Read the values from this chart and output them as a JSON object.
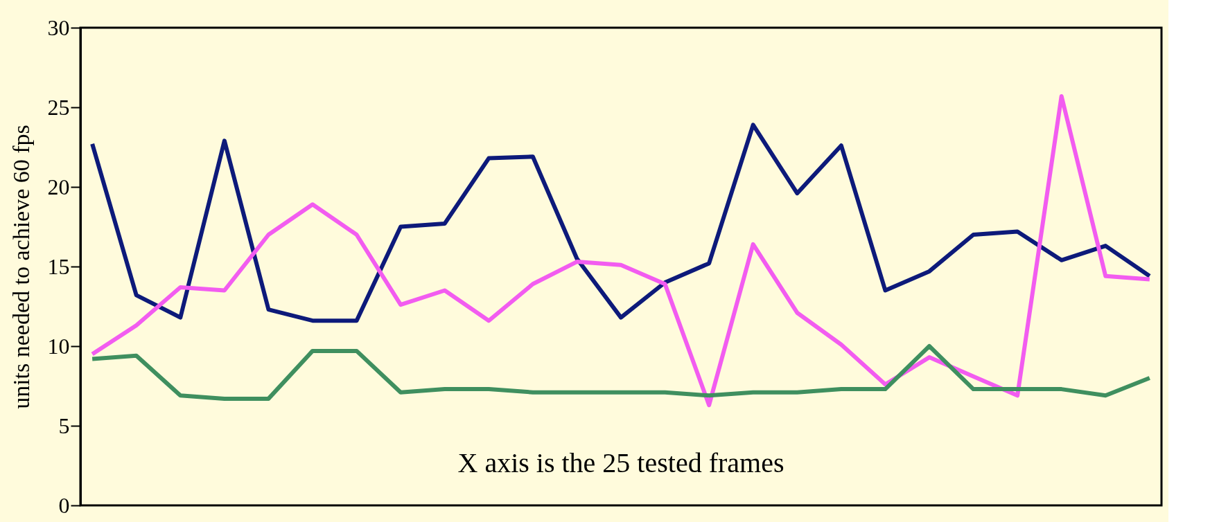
{
  "chart_data": {
    "type": "line",
    "ylabel": "units needed to achieve 60 fps",
    "annotations": [
      "X axis is the 25 tested frames"
    ],
    "categories": [
      null,
      null,
      null,
      null,
      null,
      null,
      null,
      null,
      null,
      null,
      null,
      null,
      null,
      null,
      null,
      null,
      null,
      null,
      null,
      null,
      null,
      null,
      null,
      null,
      null
    ],
    "series": [
      {
        "color": "#0d1a7a",
        "values": [
          22.7,
          13.2,
          11.8,
          22.9,
          12.3,
          11.6,
          11.6,
          17.5,
          17.7,
          21.8,
          21.9,
          15.5,
          11.8,
          14.0,
          15.2,
          23.9,
          19.6,
          22.6,
          13.5,
          14.7,
          17.0,
          17.2,
          15.4,
          16.3,
          14.4
        ]
      },
      {
        "color": "#f25cf0",
        "values": [
          9.5,
          11.3,
          13.7,
          13.5,
          17.0,
          18.9,
          17.0,
          12.6,
          13.5,
          11.6,
          13.9,
          15.3,
          15.1,
          13.9,
          6.3,
          16.4,
          12.1,
          10.1,
          7.6,
          9.3,
          8.1,
          6.9,
          25.7,
          14.4,
          14.2
        ]
      },
      {
        "color": "#3f8f5f",
        "values": [
          9.2,
          9.4,
          6.9,
          6.7,
          6.7,
          9.7,
          9.7,
          7.1,
          7.3,
          7.3,
          7.1,
          7.1,
          7.1,
          7.1,
          6.9,
          7.1,
          7.1,
          7.3,
          7.3,
          10.0,
          7.3,
          7.3,
          7.3,
          6.9,
          8.0
        ]
      }
    ],
    "ylim": [
      0,
      30
    ],
    "yticks": [
      0,
      5,
      10,
      15,
      20,
      25,
      30
    ],
    "grid": false,
    "tick_labels": "y",
    "marker": "none",
    "line_style": "solid"
  }
}
